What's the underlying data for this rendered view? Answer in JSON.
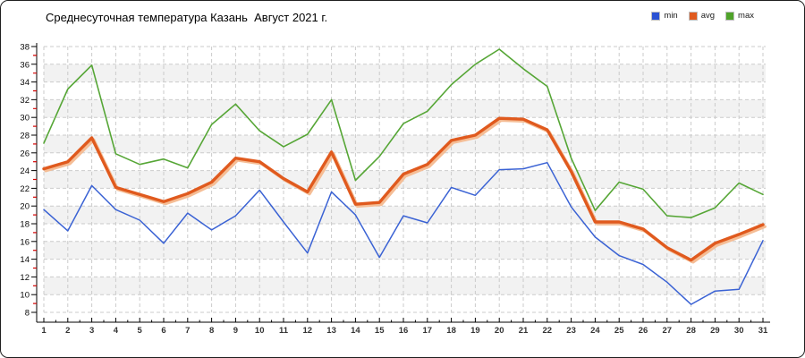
{
  "panel": {
    "title": "Среднесуточная температура Казань  Август 2021 г."
  },
  "legend": {
    "items": [
      {
        "label": "min",
        "color": "#2a52d4"
      },
      {
        "label": "avg",
        "color": "#e05a1e"
      },
      {
        "label": "max",
        "color": "#4fa32a"
      }
    ]
  },
  "chart_data": {
    "type": "line",
    "title": "Среднесуточная температура Казань  Август 2021 г.",
    "xlabel": "",
    "ylabel": "",
    "x": [
      1,
      2,
      3,
      4,
      5,
      6,
      7,
      8,
      9,
      10,
      11,
      12,
      13,
      14,
      15,
      16,
      17,
      18,
      19,
      20,
      21,
      22,
      23,
      24,
      25,
      26,
      27,
      28,
      29,
      30,
      31
    ],
    "series": [
      {
        "name": "min",
        "color": "#3a62d4",
        "width": 1.5,
        "values": [
          19.6,
          17.2,
          22.3,
          19.6,
          18.4,
          15.8,
          19.2,
          17.3,
          18.9,
          21.8,
          18.2,
          14.7,
          21.6,
          19.0,
          14.2,
          18.9,
          18.1,
          22.1,
          21.2,
          24.1,
          24.2,
          24.9,
          19.9,
          16.5,
          14.4,
          13.4,
          11.4,
          8.9,
          10.4,
          10.6,
          16.1
        ]
      },
      {
        "name": "avg",
        "color": "#e05a1e",
        "width": 3.4,
        "shadow_color": "#f5bd95",
        "values": [
          24.2,
          25.0,
          27.7,
          22.1,
          21.3,
          20.5,
          21.4,
          22.7,
          25.4,
          25.0,
          23.1,
          21.6,
          26.1,
          20.2,
          20.4,
          23.6,
          24.7,
          27.4,
          28.0,
          29.9,
          29.8,
          28.6,
          23.9,
          18.2,
          18.2,
          17.4,
          15.3,
          13.9,
          15.8,
          16.8,
          17.9
        ]
      },
      {
        "name": "max",
        "color": "#56a636",
        "width": 1.6,
        "values": [
          27.1,
          33.2,
          35.9,
          25.9,
          24.7,
          25.3,
          24.3,
          29.2,
          31.5,
          28.5,
          26.7,
          28.1,
          32.0,
          22.9,
          25.6,
          29.3,
          30.7,
          33.7,
          36.0,
          37.7,
          35.5,
          33.5,
          25.4,
          19.5,
          22.7,
          21.9,
          18.9,
          18.7,
          19.8,
          22.6,
          21.3
        ]
      }
    ],
    "ylim": [
      8,
      38
    ],
    "ytick_step": 2,
    "ytick_labels": [
      "8",
      "10",
      "12",
      "14",
      "16",
      "18",
      "20",
      "22",
      "24",
      "26",
      "28",
      "30",
      "32",
      "34",
      "36",
      "38"
    ],
    "grid": true,
    "grid_color": "#cbcbcb",
    "band_color": "#f2f2f2",
    "axis_color": "#000000",
    "minor_tick_color": "#d40000",
    "legend_position": "top-right"
  }
}
